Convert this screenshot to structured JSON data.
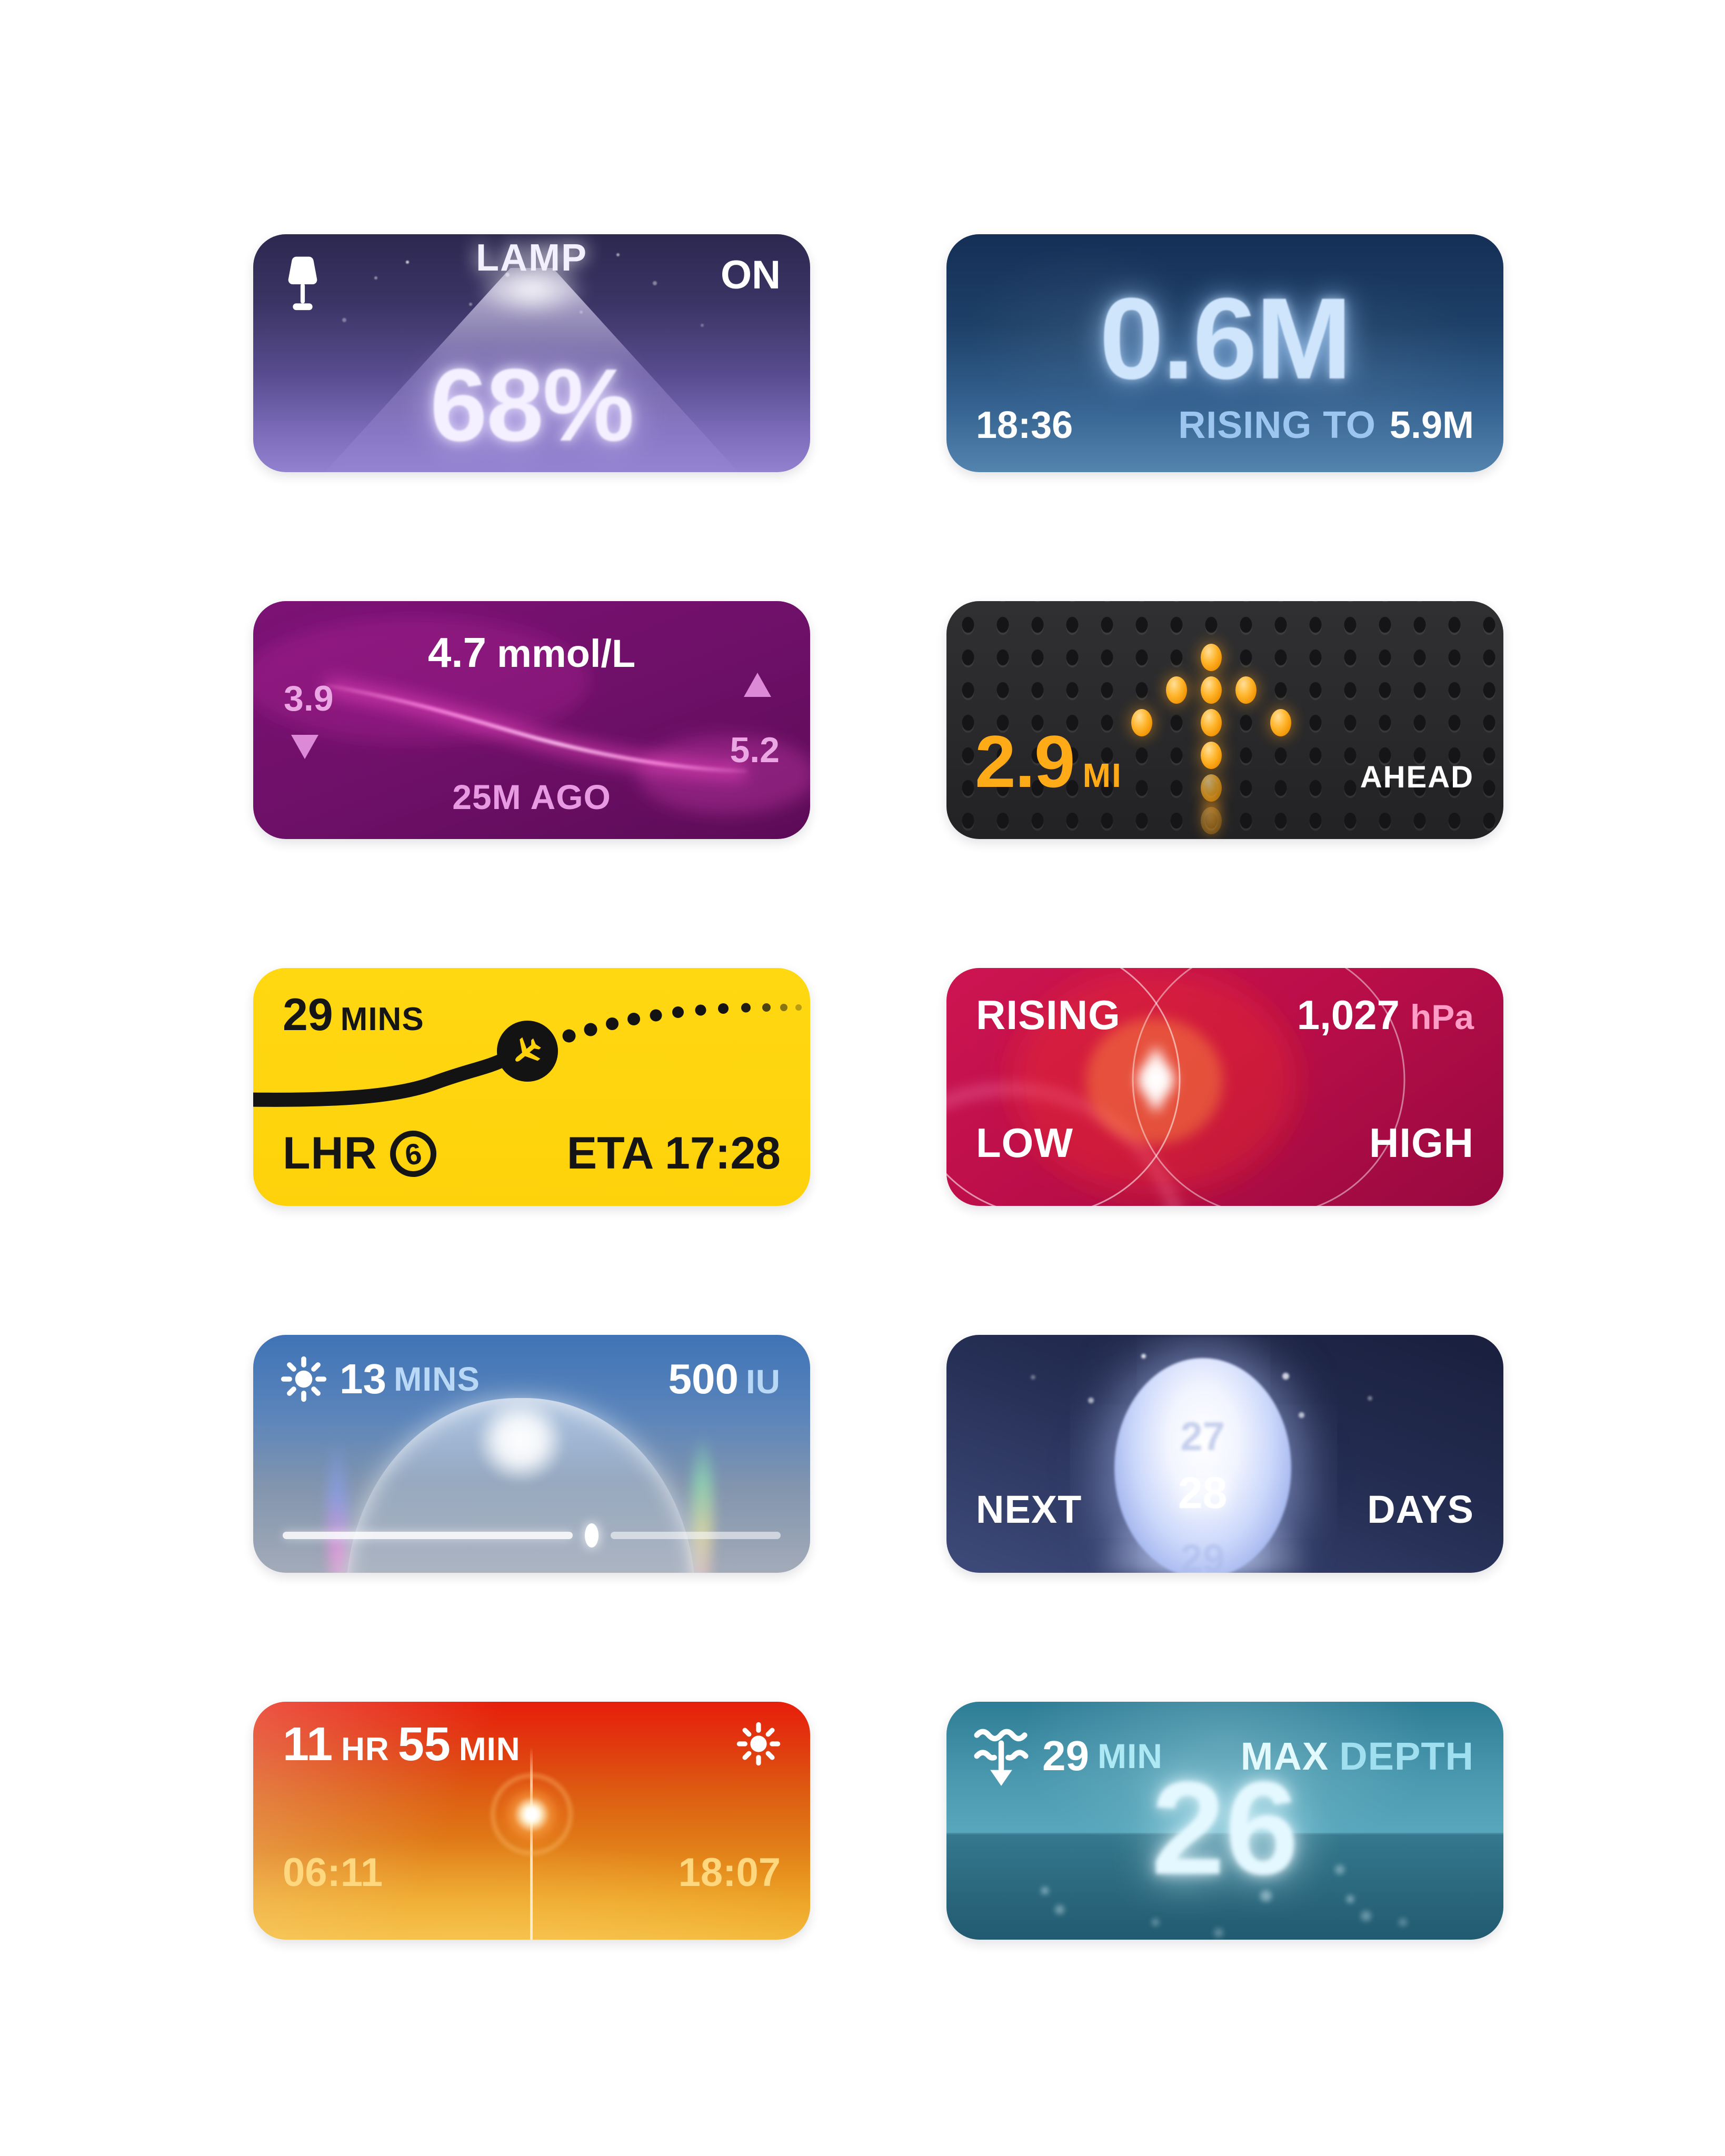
{
  "widgets": {
    "lamp": {
      "title": "LAMP",
      "status": "ON",
      "brightness": "68%"
    },
    "tide": {
      "current_height": "0.6M",
      "time": "18:36",
      "trend": "RISING TO",
      "next_height": "5.9M"
    },
    "glucose": {
      "value": "4.7",
      "unit": "mmol/L",
      "low": "3.9",
      "high": "5.2",
      "updated": "25M AGO"
    },
    "distance": {
      "value": "2.9",
      "unit": "MI",
      "label": "AHEAD",
      "matrix": {
        "cols": 16,
        "rows": 7,
        "lit": [
          {
            "c": 7,
            "r": 1,
            "o": 1
          },
          {
            "c": 6,
            "r": 2,
            "o": 1
          },
          {
            "c": 7,
            "r": 2,
            "o": 1
          },
          {
            "c": 8,
            "r": 2,
            "o": 1
          },
          {
            "c": 5,
            "r": 3,
            "o": 1
          },
          {
            "c": 7,
            "r": 3,
            "o": 1
          },
          {
            "c": 9,
            "r": 3,
            "o": 1
          },
          {
            "c": 7,
            "r": 4,
            "o": 1
          },
          {
            "c": 7,
            "r": 5,
            "o": 0.7
          },
          {
            "c": 7,
            "r": 6,
            "o": 0.35
          }
        ]
      }
    },
    "flight": {
      "duration": "29",
      "duration_unit": "MINS",
      "airport": "LHR",
      "terminal": "6",
      "eta": "ETA 17:28"
    },
    "barometer": {
      "trend": "RISING",
      "pressure": "1,027",
      "unit": "hPa",
      "low_label": "LOW",
      "high_label": "HIGH"
    },
    "uv": {
      "minutes": "13",
      "minutes_unit": "MINS",
      "dose": "500",
      "dose_unit": "IU",
      "slider_pct": 62
    },
    "moon": {
      "prev_day": "27",
      "current_day": "28",
      "next_day": "29",
      "next_label": "NEXT",
      "days_label": "DAYS"
    },
    "daylight": {
      "hours": "11",
      "hours_unit": "HR",
      "minutes": "55",
      "minutes_unit": "MIN",
      "sunrise": "06:11",
      "sunset": "18:07"
    },
    "dive": {
      "duration": "29",
      "duration_unit": "MIN",
      "label_max": "MAX",
      "label_depth": "DEPTH",
      "max_depth": "26"
    }
  },
  "colors": {
    "lamp_bg_top": "#2c2850",
    "lamp_bg_bottom": "#9181cf",
    "tide_bg_top": "#152f56",
    "tide_bg_bottom": "#5384ae",
    "tide_value": "#cfe5fc",
    "tide_trend": "#9cc5ef",
    "glucose_bg": "#6d0f67",
    "glucose_accent": "#eba7e3",
    "glucose_curve": "#ff86e4",
    "distance_bg": "#29292b",
    "distance_accent": "#ffab17",
    "flight_bg": "#fed20b",
    "flight_ink": "#151515",
    "barometer_bg": "#bb0e49",
    "barometer_unit": "#ff9dc6",
    "uv_bg_top": "#3f73b6",
    "uv_bg_bottom": "#a3abb9",
    "uv_label": "#b9d8f6",
    "moon_bg_top": "#191f3d",
    "moon_bg_bottom": "#3e4a7a",
    "daylight_bg_top": "#e71e0b",
    "daylight_bg_bottom": "#f2b637",
    "daylight_time": "#ffd77e",
    "dive_bg_top": "#2e7d96",
    "dive_bg_bottom": "#2c6e85",
    "dive_label": "#ace9f4"
  }
}
